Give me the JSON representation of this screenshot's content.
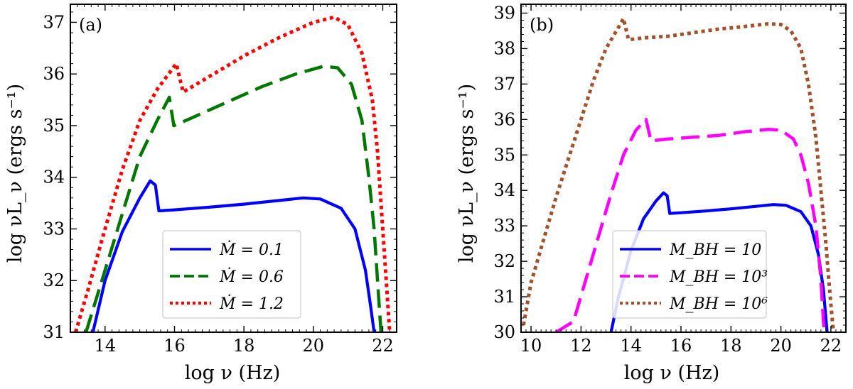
{
  "chart_data": [
    {
      "type": "line",
      "panel_label": "(a)",
      "xlabel": "log ν (Hz)",
      "ylabel": "log νL_ν (ergs s⁻¹)",
      "xlim": [
        13.0,
        22.4
      ],
      "ylim": [
        31,
        37.35
      ],
      "x_ticks": [
        14,
        16,
        18,
        20,
        22
      ],
      "y_ticks": [
        31,
        32,
        33,
        34,
        35,
        36,
        37
      ],
      "legend_position": "lower-right",
      "series": [
        {
          "name": "Ṁ = 0.1",
          "color": "#0000ff",
          "style": "solid",
          "points": [
            [
              13.65,
              31.0
            ],
            [
              14.0,
              32.0
            ],
            [
              14.5,
              32.95
            ],
            [
              15.0,
              33.6
            ],
            [
              15.3,
              33.93
            ],
            [
              15.45,
              33.85
            ],
            [
              15.55,
              33.35
            ],
            [
              16.0,
              33.37
            ],
            [
              17.0,
              33.42
            ],
            [
              18.0,
              33.48
            ],
            [
              19.0,
              33.55
            ],
            [
              19.7,
              33.6
            ],
            [
              20.2,
              33.58
            ],
            [
              20.8,
              33.4
            ],
            [
              21.2,
              33.0
            ],
            [
              21.5,
              32.2
            ],
            [
              21.65,
              31.5
            ],
            [
              21.75,
              31.0
            ]
          ]
        },
        {
          "name": "Ṁ = 0.6",
          "color": "#007700",
          "style": "dashed",
          "points": [
            [
              13.45,
              31.0
            ],
            [
              14.0,
              32.2
            ],
            [
              14.5,
              33.3
            ],
            [
              15.0,
              34.4
            ],
            [
              15.5,
              35.1
            ],
            [
              15.85,
              35.55
            ],
            [
              15.98,
              35.0
            ],
            [
              16.5,
              35.15
            ],
            [
              17.5,
              35.45
            ],
            [
              18.5,
              35.75
            ],
            [
              19.5,
              36.0
            ],
            [
              20.3,
              36.15
            ],
            [
              20.7,
              36.12
            ],
            [
              21.1,
              35.8
            ],
            [
              21.4,
              35.1
            ],
            [
              21.6,
              34.0
            ],
            [
              21.75,
              33.0
            ],
            [
              21.85,
              32.0
            ],
            [
              21.95,
              31.0
            ]
          ]
        },
        {
          "name": "Ṁ = 1.2",
          "color": "#ff0000",
          "style": "dotted",
          "points": [
            [
              13.15,
              31.0
            ],
            [
              13.5,
              31.8
            ],
            [
              14.0,
              33.0
            ],
            [
              14.5,
              34.15
            ],
            [
              15.0,
              35.1
            ],
            [
              15.5,
              35.7
            ],
            [
              16.05,
              36.2
            ],
            [
              16.25,
              35.65
            ],
            [
              17.0,
              35.95
            ],
            [
              18.0,
              36.35
            ],
            [
              19.0,
              36.7
            ],
            [
              20.0,
              37.0
            ],
            [
              20.6,
              37.1
            ],
            [
              21.0,
              36.95
            ],
            [
              21.4,
              36.4
            ],
            [
              21.7,
              35.5
            ],
            [
              21.85,
              34.5
            ],
            [
              21.95,
              33.5
            ],
            [
              22.05,
              32.5
            ],
            [
              22.15,
              31.5
            ],
            [
              22.2,
              31.0
            ]
          ]
        }
      ]
    },
    {
      "type": "line",
      "panel_label": "(b)",
      "xlabel": "log ν (Hz)",
      "ylabel": "log νL_ν (ergs s⁻¹)",
      "xlim": [
        9.6,
        22.6
      ],
      "ylim": [
        30,
        39.25
      ],
      "x_ticks": [
        10,
        12,
        14,
        16,
        18,
        20,
        22
      ],
      "y_ticks": [
        30,
        31,
        32,
        33,
        34,
        35,
        36,
        37,
        38,
        39
      ],
      "legend_position": "lower-center",
      "series": [
        {
          "name": "M_BH = 10",
          "color": "#0000ff",
          "style": "solid",
          "points": [
            [
              13.2,
              30.0
            ],
            [
              13.5,
              31.0
            ],
            [
              14.0,
              32.3
            ],
            [
              14.5,
              33.2
            ],
            [
              15.0,
              33.7
            ],
            [
              15.3,
              33.93
            ],
            [
              15.45,
              33.85
            ],
            [
              15.55,
              33.35
            ],
            [
              16.0,
              33.37
            ],
            [
              17.0,
              33.42
            ],
            [
              18.0,
              33.48
            ],
            [
              19.0,
              33.55
            ],
            [
              19.7,
              33.6
            ],
            [
              20.2,
              33.58
            ],
            [
              20.8,
              33.4
            ],
            [
              21.2,
              33.0
            ],
            [
              21.5,
              32.2
            ],
            [
              21.7,
              31.2
            ],
            [
              21.85,
              30.0
            ]
          ]
        },
        {
          "name": "M_BH = 10³",
          "color": "#ff00ff",
          "style": "dashed",
          "points": [
            [
              11.0,
              30.0
            ],
            [
              11.7,
              30.3
            ],
            [
              12.2,
              31.5
            ],
            [
              12.7,
              32.7
            ],
            [
              13.2,
              33.9
            ],
            [
              13.7,
              35.0
            ],
            [
              14.2,
              35.7
            ],
            [
              14.6,
              36.0
            ],
            [
              14.8,
              35.4
            ],
            [
              15.5,
              35.45
            ],
            [
              16.5,
              35.5
            ],
            [
              17.5,
              35.55
            ],
            [
              18.5,
              35.65
            ],
            [
              19.5,
              35.72
            ],
            [
              20.0,
              35.7
            ],
            [
              20.5,
              35.45
            ],
            [
              20.8,
              35.0
            ],
            [
              21.1,
              34.2
            ],
            [
              21.4,
              33.0
            ],
            [
              21.6,
              31.5
            ],
            [
              21.7,
              30.3
            ],
            [
              21.75,
              30.0
            ]
          ]
        },
        {
          "name": "M_BH = 10⁶",
          "color": "#a0522d",
          "style": "dotted",
          "points": [
            [
              9.7,
              30.2
            ],
            [
              10.0,
              31.4
            ],
            [
              10.5,
              32.6
            ],
            [
              11.0,
              33.8
            ],
            [
              11.5,
              34.9
            ],
            [
              12.0,
              36.0
            ],
            [
              12.5,
              37.1
            ],
            [
              13.0,
              38.0
            ],
            [
              13.5,
              38.6
            ],
            [
              13.7,
              38.85
            ],
            [
              13.9,
              38.25
            ],
            [
              14.5,
              38.3
            ],
            [
              15.5,
              38.35
            ],
            [
              16.5,
              38.45
            ],
            [
              17.5,
              38.55
            ],
            [
              18.5,
              38.62
            ],
            [
              19.5,
              38.7
            ],
            [
              20.0,
              38.68
            ],
            [
              20.4,
              38.5
            ],
            [
              20.8,
              38.0
            ],
            [
              21.1,
              37.0
            ],
            [
              21.4,
              35.5
            ],
            [
              21.6,
              34.0
            ],
            [
              21.8,
              32.5
            ],
            [
              21.95,
              31.2
            ],
            [
              22.1,
              30.0
            ]
          ]
        }
      ]
    }
  ]
}
